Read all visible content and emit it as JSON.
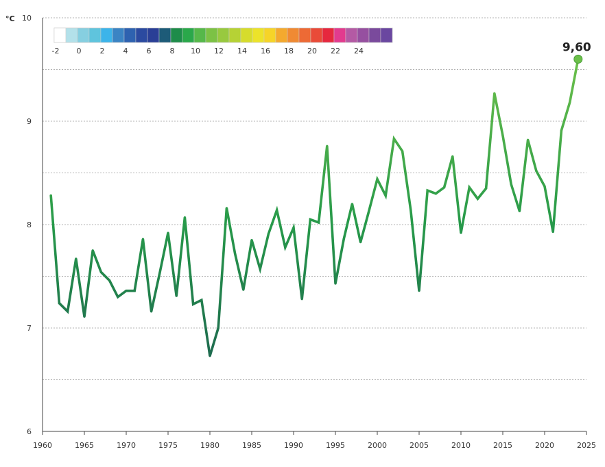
{
  "chart_data": {
    "type": "line",
    "title": "",
    "xlabel": "",
    "ylabel": "°C",
    "xlim": [
      1960,
      2025
    ],
    "ylim": [
      6,
      10
    ],
    "x_ticks": [
      "1960",
      "1965",
      "1970",
      "1975",
      "1980",
      "1985",
      "1990",
      "1995",
      "2000",
      "2005",
      "2010",
      "2015",
      "2020",
      "2025"
    ],
    "y_ticks": [
      "6",
      "7",
      "8",
      "9",
      "10"
    ],
    "grid": true,
    "series": [
      {
        "x": [
          1961,
          1962,
          1963,
          1964,
          1965,
          1966,
          1967,
          1968,
          1969,
          1970,
          1971,
          1972,
          1973,
          1974,
          1975,
          1976,
          1977,
          1978,
          1979,
          1980,
          1981,
          1982,
          1983,
          1984,
          1985,
          1986,
          1987,
          1988,
          1989,
          1990,
          1991,
          1992,
          1993,
          1994,
          1995,
          1996,
          1997,
          1998,
          1999,
          2000,
          2001,
          2002,
          2003,
          2004,
          2005,
          2006,
          2007,
          2008,
          2009,
          2010,
          2011,
          2012,
          2013,
          2014,
          2015,
          2016,
          2017,
          2018,
          2019,
          2020,
          2021,
          2022,
          2023,
          2024
        ],
        "values": [
          8.28,
          7.24,
          7.16,
          7.67,
          7.11,
          7.75,
          7.54,
          7.46,
          7.3,
          7.36,
          7.36,
          7.86,
          7.16,
          7.53,
          7.92,
          7.31,
          8.07,
          7.23,
          7.27,
          6.73,
          7.0,
          8.16,
          7.72,
          7.37,
          7.85,
          7.57,
          7.91,
          8.14,
          7.78,
          7.97,
          7.28,
          8.05,
          8.02,
          8.76,
          7.43,
          7.86,
          8.2,
          7.83,
          8.13,
          8.44,
          8.28,
          8.83,
          8.71,
          8.14,
          7.36,
          8.33,
          8.3,
          8.36,
          8.66,
          7.92,
          8.36,
          8.25,
          8.35,
          9.27,
          8.86,
          8.39,
          8.13,
          8.82,
          8.52,
          8.37,
          7.93,
          8.91,
          9.18,
          9.6
        ]
      }
    ],
    "end_label": "9,60",
    "color_scale": {
      "labels": [
        "-2",
        "0",
        "2",
        "4",
        "6",
        "8",
        "10",
        "12",
        "14",
        "16",
        "18",
        "20",
        "22",
        "24"
      ],
      "colors": [
        "#ffffff",
        "#b3e1ea",
        "#86cfe0",
        "#5fc4dd",
        "#3cb4ea",
        "#3b84c4",
        "#2e62b0",
        "#2b4aa0",
        "#2a3f96",
        "#1d5b78",
        "#1e8c4a",
        "#2aa84a",
        "#56b84a",
        "#7cc245",
        "#98c93f",
        "#b6d235",
        "#d6dc2c",
        "#ece32a",
        "#f6d428",
        "#f4a92e",
        "#f08a33",
        "#ed6a35",
        "#e94b38",
        "#e6283e",
        "#e23b8e",
        "#b45aa4",
        "#9650a0",
        "#7a4a9c",
        "#6a47a0"
      ]
    },
    "colors": {
      "line_low": "#1e6b4f",
      "line_high": "#6cc04a",
      "grid": "#9a9a9a",
      "axis": "#444444"
    }
  }
}
